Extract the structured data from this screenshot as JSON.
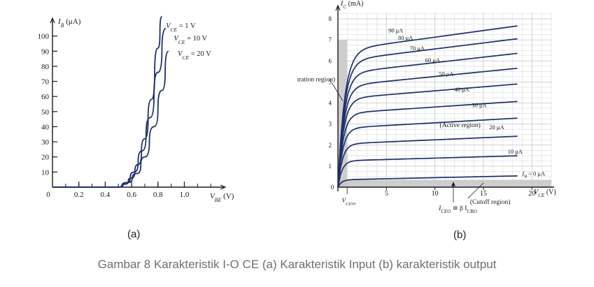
{
  "caption": "Gambar 8 Karakteristik I-O CE (a) Karakteristik Input (b) karakteristik output",
  "colors": {
    "curve": "#1f2f6b",
    "grid_minor": "#e4e4e4",
    "grid_major": "#c4c4c4",
    "shade": "#c6c6c6",
    "axis": "#1a1a1a"
  },
  "chart_data": [
    {
      "type": "line",
      "panel_label": "(a)",
      "ylabel": "I_B (μA)",
      "ylabel_pre": "I",
      "ylabel_sub": "B",
      "ylabel_post": "(μA)",
      "xlabel": "V_BE (V)",
      "xlabel_pre": "V",
      "xlabel_sub": "BE",
      "xlabel_post": "(V)",
      "xlim": [
        0,
        1.3
      ],
      "ylim": [
        0,
        110
      ],
      "x_ticks": [
        0.2,
        0.4,
        0.6,
        0.8,
        1.0
      ],
      "x_tick_labels": [
        "0.2",
        "0.4",
        "0.6",
        "0.8",
        "1.0"
      ],
      "x_origin_label": "0",
      "y_ticks": [
        10,
        20,
        30,
        40,
        50,
        60,
        70,
        80,
        90,
        100
      ],
      "y_tick_labels": [
        "10",
        "20",
        "30",
        "40",
        "50",
        "60",
        "70",
        "80",
        "90",
        "100"
      ],
      "grid": false,
      "series": [
        {
          "name": "V_CE = 1 V",
          "label_pre": "V",
          "label_sub": "CE",
          "label_post": " = 1 V",
          "x": [
            0,
            0.5,
            0.55,
            0.6,
            0.65,
            0.7,
            0.75,
            0.8,
            0.83
          ],
          "y": [
            0,
            0,
            2,
            6,
            15,
            32,
            58,
            92,
            113
          ]
        },
        {
          "name": "V_CE = 10 V",
          "label_pre": "V",
          "label_sub": "CE",
          "label_post": " = 10 V",
          "x": [
            0,
            0.5,
            0.56,
            0.62,
            0.68,
            0.74,
            0.8,
            0.86
          ],
          "y": [
            0,
            0,
            3,
            10,
            24,
            46,
            76,
            105
          ]
        },
        {
          "name": "V_CE = 20 V",
          "label_pre": "V",
          "label_sub": "CE",
          "label_post": " = 20 V",
          "x": [
            0,
            0.5,
            0.57,
            0.64,
            0.7,
            0.77,
            0.83,
            0.88
          ],
          "y": [
            0,
            0,
            3,
            9,
            20,
            40,
            64,
            90
          ]
        }
      ]
    },
    {
      "type": "line",
      "panel_label": "(b)",
      "ylabel": "I_C (mA)",
      "ylabel_pre": "I",
      "ylabel_sub": "C",
      "ylabel_post": "(mA)",
      "xlabel": "V_CE (V)",
      "xlabel_pre": "V",
      "xlabel_sub": "CE",
      "xlabel_post": "(V)",
      "xlim": [
        0,
        22
      ],
      "ylim": [
        0,
        8.3
      ],
      "x_ticks": [
        5,
        10,
        15,
        20
      ],
      "x_tick_labels": [
        "5",
        "10",
        "15",
        "20"
      ],
      "x_origin_label": "0",
      "y_ticks": [
        1,
        2,
        3,
        4,
        5,
        6,
        7,
        8
      ],
      "y_tick_labels": [
        "1",
        "2",
        "3",
        "4",
        "5",
        "6",
        "7",
        "8"
      ],
      "grid": true,
      "region_labels": {
        "saturation": "(Saturation region)",
        "active": "(Active region)",
        "cutoff": "(Cutoff region)",
        "vce_sat_pre": "V",
        "vce_sat_sub": "CE",
        "vce_sat_sub2": "sat",
        "iceo_pre": "I",
        "iceo_sub": "CEO",
        "iceo_mid": " ≅ β I",
        "iceo_sub2": "CBO"
      },
      "series": [
        {
          "name": "90 μA",
          "ib": 90,
          "plateau": 6.5,
          "slope": 0.063,
          "label": "90 μA",
          "label_x": 5.2,
          "label_y": 7.35
        },
        {
          "name": "80 μA",
          "ib": 80,
          "plateau": 6.0,
          "slope": 0.057,
          "label": "80 μA",
          "label_x": 6.2,
          "label_y": 7.0
        },
        {
          "name": "70 μA",
          "ib": 70,
          "plateau": 5.4,
          "slope": 0.052,
          "label": "70 μA",
          "label_x": 7.4,
          "label_y": 6.5
        },
        {
          "name": "60 μA",
          "ib": 60,
          "plateau": 4.8,
          "slope": 0.046,
          "label": "60 μA",
          "label_x": 9.0,
          "label_y": 5.95
        },
        {
          "name": "50 μA",
          "ib": 50,
          "plateau": 4.2,
          "slope": 0.038,
          "label": "50 μA",
          "label_x": 10.4,
          "label_y": 5.3
        },
        {
          "name": "40 μA",
          "ib": 40,
          "plateau": 3.5,
          "slope": 0.031,
          "label": "40 μA",
          "label_x": 12.0,
          "label_y": 4.55
        },
        {
          "name": "30 μA",
          "ib": 30,
          "plateau": 2.8,
          "slope": 0.026,
          "label": "30 μA",
          "label_x": 13.8,
          "label_y": 3.8
        },
        {
          "name": "20 μA",
          "ib": 20,
          "plateau": 2.05,
          "slope": 0.02,
          "label": "20 μA",
          "label_x": 15.6,
          "label_y": 2.75
        },
        {
          "name": "10 μA",
          "ib": 10,
          "plateau": 1.25,
          "slope": 0.013,
          "label": "10 μA",
          "label_x": 17.5,
          "label_y": 1.6
        },
        {
          "name": "I_B = 0 μA",
          "ib": 0,
          "plateau": 0.35,
          "slope": 0.01,
          "label_pre": "I",
          "label_sub": "B",
          "label_post": " = 0 μA",
          "label_x": 19.0,
          "label_y": 0.55
        }
      ]
    }
  ]
}
